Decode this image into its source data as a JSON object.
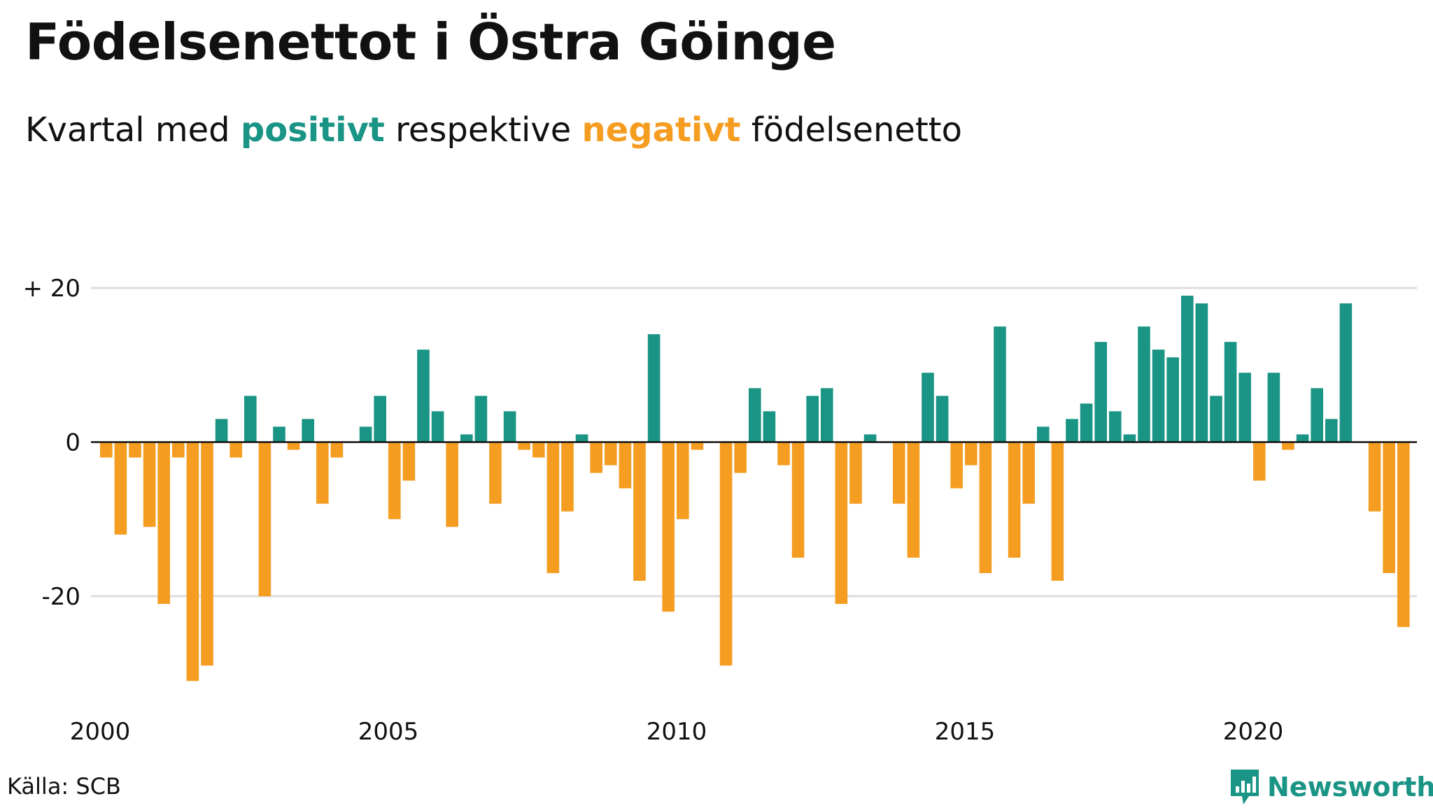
{
  "title": "Födelsenettot i Östra Göinge",
  "subtitle": {
    "prefix": "Kvartal med ",
    "positive_word": "positivt",
    "middle": " respektive ",
    "negative_word": "negativt",
    "suffix": " födelsenetto"
  },
  "source": "Källa: SCB",
  "brand": "Newsworthy",
  "colors": {
    "positive": "#1a9485",
    "negative": "#f59d21",
    "grid": "#dddddd",
    "axis": "#111111"
  },
  "chart_data": {
    "type": "bar",
    "title": "Födelsenettot i Östra Göinge",
    "ylim": [
      -32,
      22
    ],
    "y_ticks": [
      {
        "value": 20,
        "label": "+ 20"
      },
      {
        "value": 0,
        "label": "0"
      },
      {
        "value": -20,
        "label": "-20"
      }
    ],
    "x_ticks": [
      {
        "value": 2000,
        "label": "2000"
      },
      {
        "value": 2005,
        "label": "2005"
      },
      {
        "value": 2010,
        "label": "2010"
      },
      {
        "value": 2015,
        "label": "2015"
      },
      {
        "value": 2020,
        "label": "2020"
      }
    ],
    "grid": true,
    "start_year": 2000,
    "series": [
      {
        "values": [
          -2,
          -12,
          -2,
          -11,
          -21,
          -2,
          -31,
          -29,
          3,
          -2,
          6,
          -20,
          2,
          -1,
          3,
          -8,
          -2,
          0,
          2,
          6,
          -10,
          -5,
          12,
          4,
          -11,
          1,
          6,
          -8,
          4,
          -1,
          -2,
          -17,
          -9,
          1,
          -4,
          -3,
          -6,
          -18,
          14,
          -22,
          -10,
          -1,
          0,
          -29,
          -4,
          7,
          4,
          -3,
          -15,
          6,
          7,
          -21,
          -8,
          1,
          0,
          -8,
          -15,
          9,
          6,
          -6,
          -3,
          -17,
          15,
          -15,
          -8,
          2,
          -18,
          3,
          5,
          13,
          4,
          1,
          15,
          12,
          11,
          19,
          18,
          6,
          13,
          9,
          -5,
          9,
          -1,
          1,
          7,
          3,
          18,
          0,
          -9,
          -17,
          -24
        ]
      }
    ]
  }
}
